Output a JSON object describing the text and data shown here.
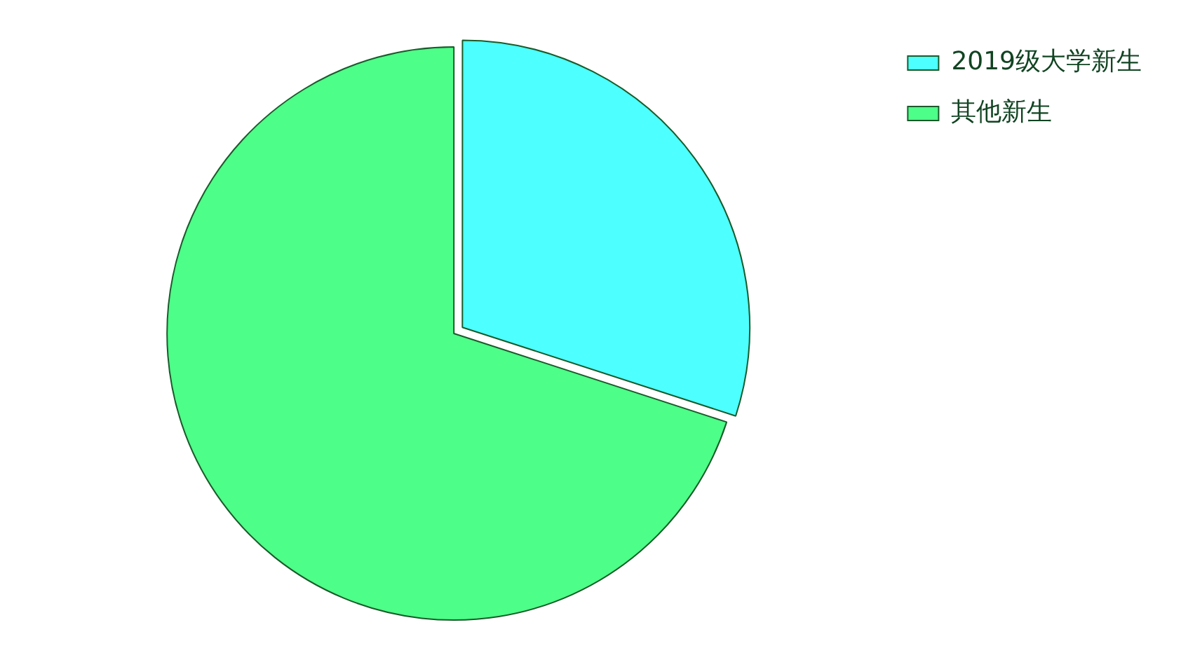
{
  "chart_data": {
    "type": "pie",
    "categories": [
      "2019级大学新生",
      "其他新生"
    ],
    "values": [
      30,
      70
    ],
    "colors": [
      "#4dffff",
      "#4dff88"
    ],
    "legend": "top right"
  }
}
